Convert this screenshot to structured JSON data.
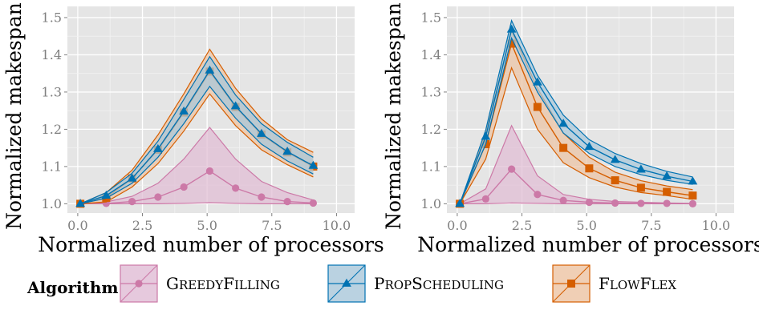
{
  "chart_data": [
    {
      "type": "line",
      "xlabel": "Normalized number of processors",
      "ylabel": "Normalized makespan",
      "xlim": [
        -0.4,
        10.7
      ],
      "ylim": [
        0.975,
        1.53
      ],
      "xticks": [
        0.0,
        2.5,
        5.0,
        7.5,
        10.0
      ],
      "xtick_labels": [
        "0.0",
        "2.5",
        "5.0",
        "7.5",
        "10.0"
      ],
      "yticks": [
        1.0,
        1.1,
        1.2,
        1.3,
        1.4,
        1.5
      ],
      "ytick_labels": [
        "1.0",
        "1.1",
        "1.2",
        "1.3",
        "1.4",
        "1.5"
      ],
      "grid": true,
      "x": [
        0.1,
        1.1,
        2.1,
        3.1,
        4.1,
        5.1,
        6.1,
        7.1,
        8.1,
        9.1
      ],
      "series": [
        {
          "name": "GreedyFilling",
          "values": [
            1.0,
            1.001,
            1.006,
            1.018,
            1.045,
            1.088,
            1.042,
            1.018,
            1.006,
            1.002
          ],
          "lower": [
            1.0,
            1.0,
            1.0,
            1.0,
            1.001,
            1.003,
            1.001,
            1.0,
            1.0,
            1.0
          ],
          "upper": [
            1.0,
            1.005,
            1.02,
            1.055,
            1.12,
            1.205,
            1.12,
            1.06,
            1.03,
            1.01
          ]
        },
        {
          "name": "PropScheduling",
          "values": [
            1.0,
            1.022,
            1.068,
            1.147,
            1.248,
            1.358,
            1.262,
            1.188,
            1.14,
            1.102
          ],
          "lower": [
            1.0,
            1.015,
            1.055,
            1.125,
            1.215,
            1.315,
            1.23,
            1.16,
            1.115,
            1.08
          ],
          "upper": [
            1.0,
            1.03,
            1.082,
            1.168,
            1.28,
            1.395,
            1.292,
            1.215,
            1.165,
            1.125
          ]
        },
        {
          "name": "FlowFlex",
          "values": [
            1.0,
            1.016,
            1.068,
            1.145,
            1.245,
            1.355,
            1.26,
            1.186,
            1.138,
            1.1
          ],
          "lower": [
            1.0,
            1.005,
            1.045,
            1.108,
            1.195,
            1.295,
            1.21,
            1.145,
            1.105,
            1.072
          ],
          "upper": [
            1.0,
            1.03,
            1.09,
            1.185,
            1.295,
            1.415,
            1.31,
            1.228,
            1.172,
            1.138
          ]
        }
      ]
    },
    {
      "type": "line",
      "xlabel": "Normalized number of processors",
      "ylabel": "Normalized makespan",
      "xlim": [
        -0.4,
        10.7
      ],
      "ylim": [
        0.975,
        1.53
      ],
      "xticks": [
        0.0,
        2.5,
        5.0,
        7.5,
        10.0
      ],
      "xtick_labels": [
        "0.0",
        "2.5",
        "5.0",
        "7.5",
        "10.0"
      ],
      "yticks": [
        1.0,
        1.1,
        1.2,
        1.3,
        1.4,
        1.5
      ],
      "ytick_labels": [
        "1.0",
        "1.1",
        "1.2",
        "1.3",
        "1.4",
        "1.5"
      ],
      "grid": true,
      "x": [
        0.1,
        1.1,
        2.1,
        3.1,
        4.1,
        5.1,
        6.1,
        7.1,
        8.1,
        9.1
      ],
      "series": [
        {
          "name": "GreedyFilling",
          "values": [
            1.0,
            1.013,
            1.093,
            1.025,
            1.009,
            1.004,
            1.002,
            1.001,
            1.001,
            1.0
          ],
          "lower": [
            1.0,
            1.0,
            1.002,
            1.001,
            1.0,
            1.0,
            1.0,
            1.0,
            1.0,
            1.0
          ],
          "upper": [
            1.0,
            1.04,
            1.21,
            1.075,
            1.025,
            1.012,
            1.006,
            1.004,
            1.002,
            1.001
          ]
        },
        {
          "name": "PropScheduling",
          "values": [
            1.0,
            1.18,
            1.468,
            1.326,
            1.215,
            1.153,
            1.118,
            1.092,
            1.074,
            1.06
          ],
          "lower": [
            1.0,
            1.16,
            1.445,
            1.3,
            1.19,
            1.135,
            1.1,
            1.078,
            1.063,
            1.052
          ],
          "upper": [
            1.0,
            1.198,
            1.492,
            1.345,
            1.238,
            1.172,
            1.135,
            1.108,
            1.087,
            1.072
          ]
        },
        {
          "name": "FlowFlex",
          "values": [
            1.0,
            1.16,
            1.43,
            1.26,
            1.15,
            1.095,
            1.063,
            1.043,
            1.032,
            1.022
          ],
          "lower": [
            1.0,
            1.12,
            1.365,
            1.2,
            1.11,
            1.07,
            1.045,
            1.03,
            1.022,
            1.012
          ],
          "upper": [
            1.0,
            1.19,
            1.465,
            1.31,
            1.19,
            1.125,
            1.085,
            1.062,
            1.048,
            1.038
          ]
        }
      ]
    }
  ],
  "legend": {
    "title": "Algorithm",
    "items": [
      {
        "label": "GreedyFilling",
        "color": "#cc79a7",
        "fill": "#e0bcd4",
        "marker": "circle"
      },
      {
        "label": "PropScheduling",
        "color": "#0072b2",
        "fill": "#a9c7da",
        "marker": "triangle"
      },
      {
        "label": "FlowFlex",
        "color": "#d55e00",
        "fill": "#ecc3a3",
        "marker": "square"
      }
    ]
  },
  "colors": {
    "panel_background": "#e5e5e5",
    "grid_major": "#ffffff",
    "tick_label": "#7f7f7f"
  }
}
